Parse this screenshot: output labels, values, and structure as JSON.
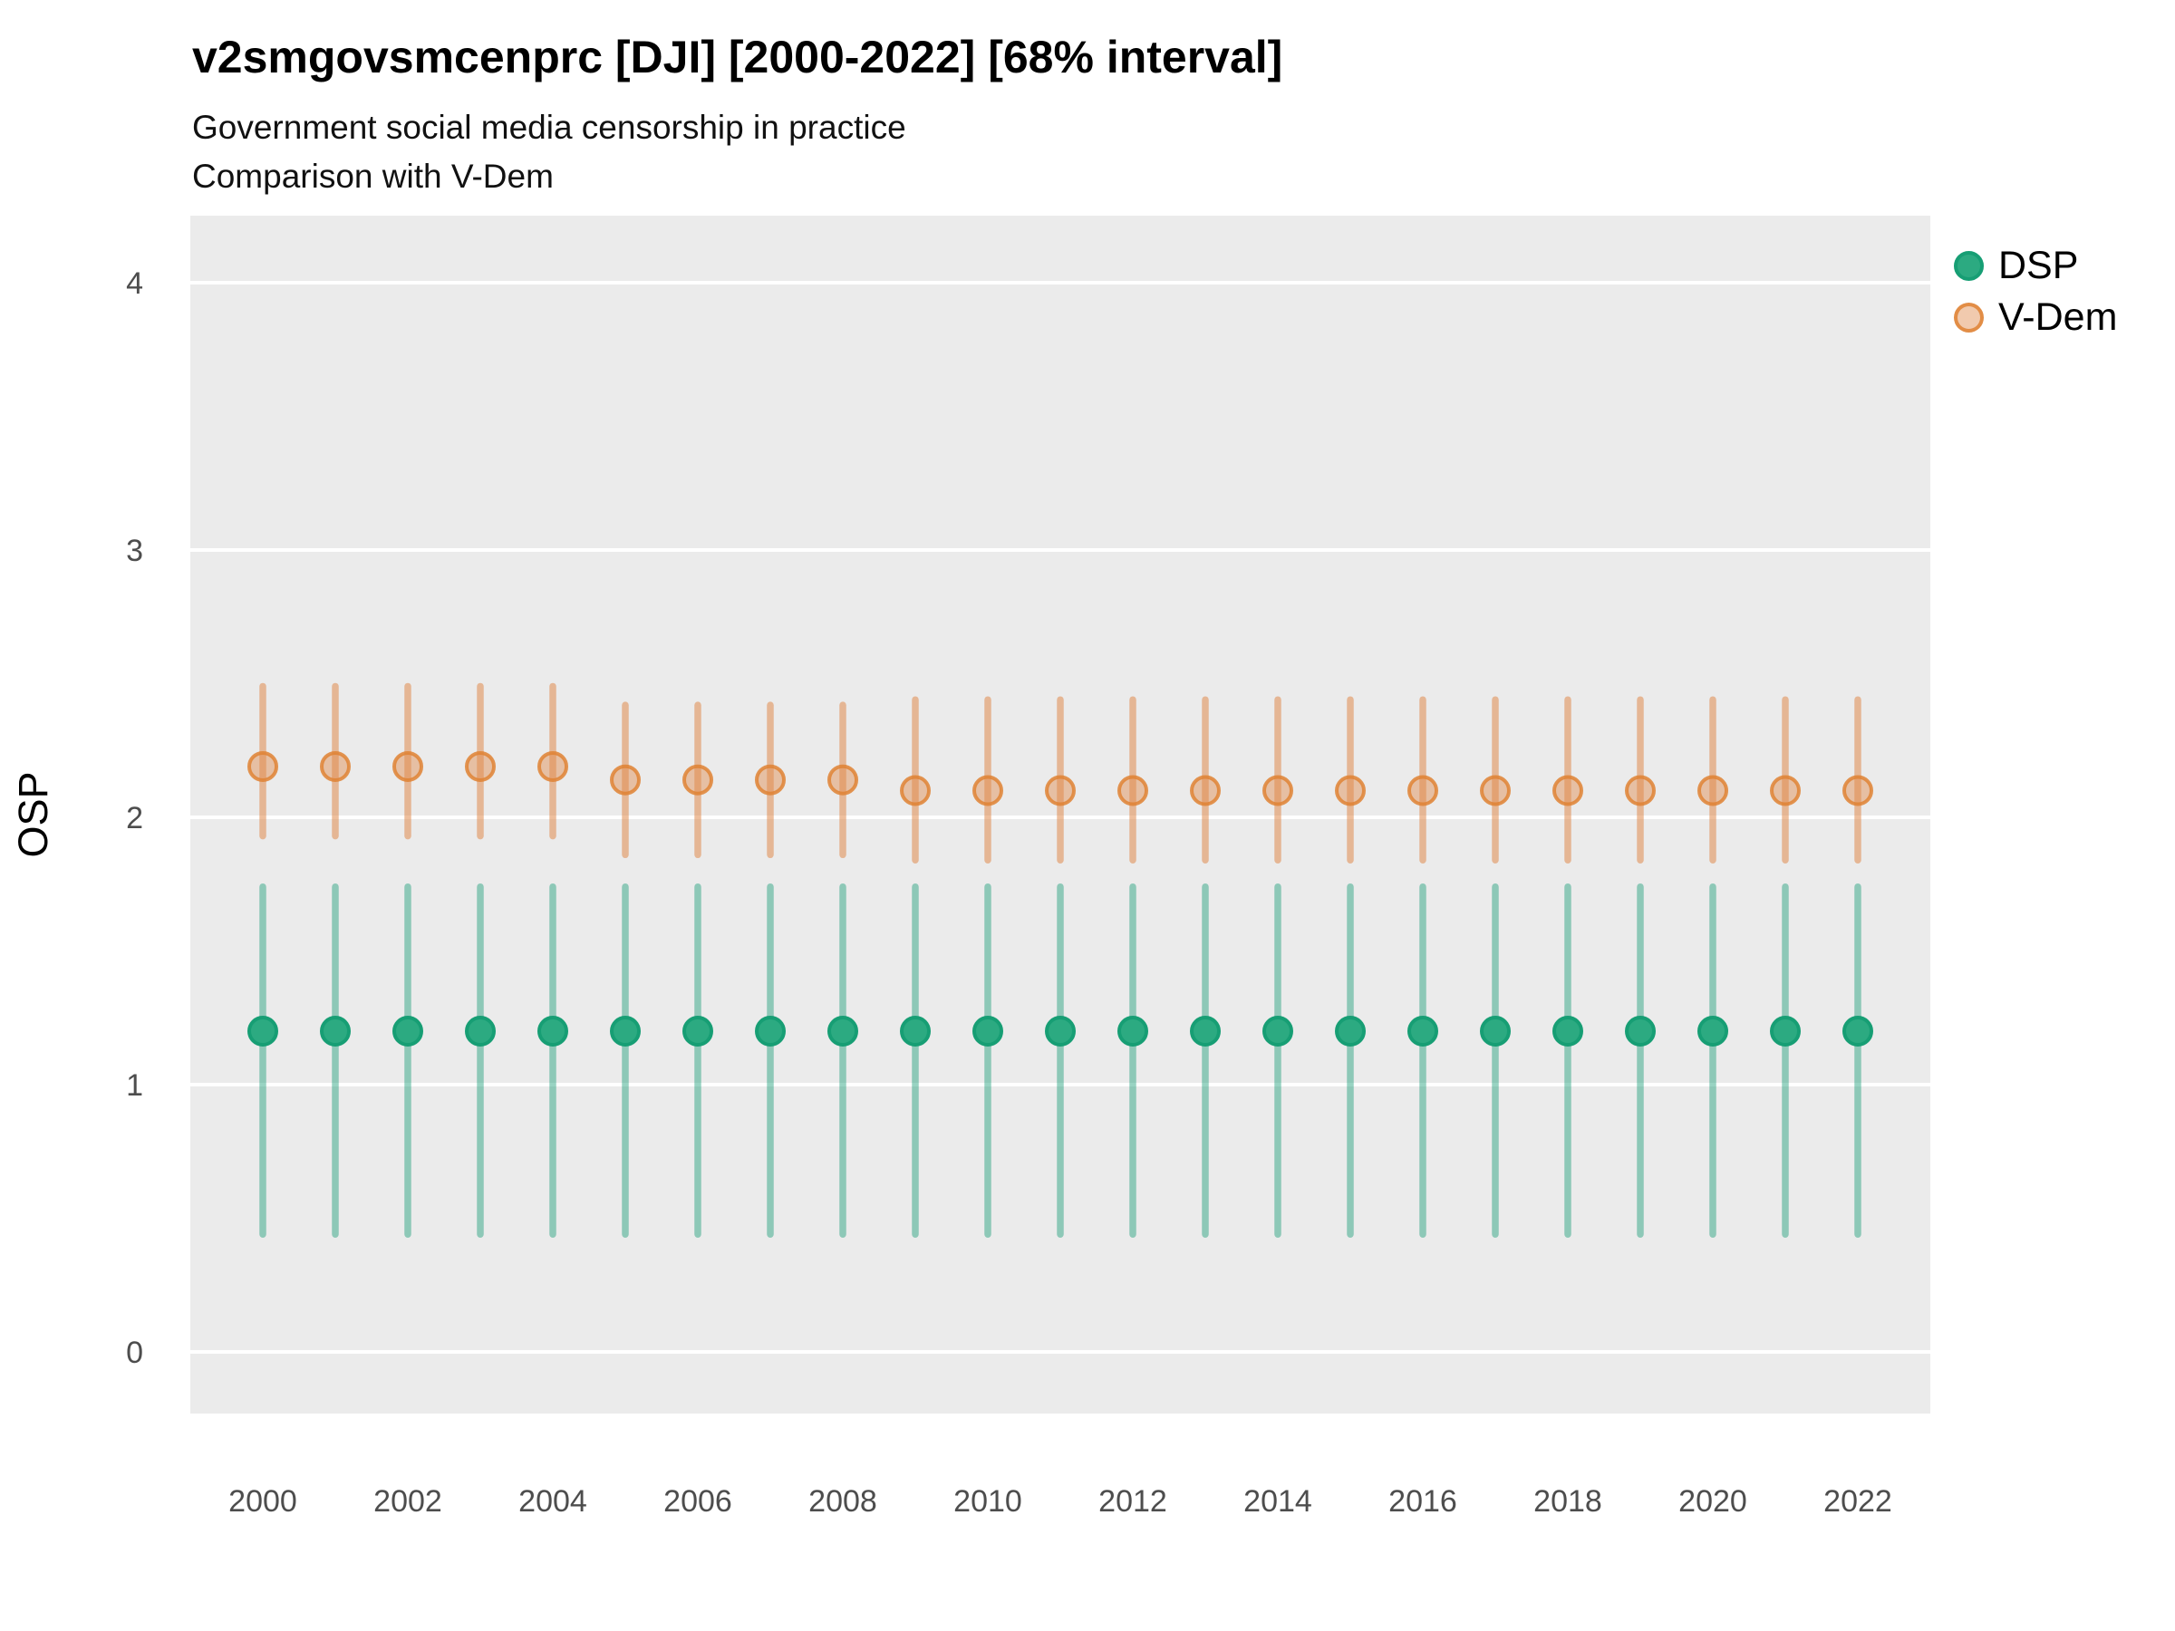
{
  "chart_data": {
    "type": "pointrange",
    "title": "v2smgovsmcenprc [DJI] [2000-2022] [68% interval]",
    "subtitle_line1": "Government social media censorship in practice",
    "subtitle_line2": "Comparison with V-Dem",
    "ylabel": "OSP",
    "xlabel": "",
    "interval": "68%",
    "ylim": [
      -0.3,
      4.25
    ],
    "grid": "major horizontal white lines on gray panel",
    "legend_position": "top-right",
    "panel_color": "#ebebeb",
    "gridline_color": "#ffffff",
    "tick_label_color": "#4d4d4d",
    "x": [
      2000,
      2001,
      2002,
      2003,
      2004,
      2005,
      2006,
      2007,
      2008,
      2009,
      2010,
      2011,
      2012,
      2013,
      2014,
      2015,
      2016,
      2017,
      2018,
      2019,
      2020,
      2021,
      2022
    ],
    "xticks": [
      2000,
      2002,
      2004,
      2006,
      2008,
      2010,
      2012,
      2014,
      2016,
      2018,
      2020,
      2022
    ],
    "yticks": [
      0,
      1,
      2,
      3,
      4
    ],
    "series": [
      {
        "name": "DSP",
        "point_fill": "#2caa81",
        "point_stroke": "#179e74",
        "bar_color": "rgba(27,158,119,0.45)",
        "est": [
          1.2,
          1.2,
          1.2,
          1.2,
          1.2,
          1.2,
          1.2,
          1.2,
          1.2,
          1.2,
          1.2,
          1.2,
          1.2,
          1.2,
          1.2,
          1.2,
          1.2,
          1.2,
          1.2,
          1.2,
          1.2,
          1.2,
          1.2
        ],
        "lo": [
          0.44,
          0.44,
          0.44,
          0.44,
          0.44,
          0.44,
          0.44,
          0.44,
          0.44,
          0.44,
          0.44,
          0.44,
          0.44,
          0.44,
          0.44,
          0.44,
          0.44,
          0.44,
          0.44,
          0.44,
          0.44,
          0.44,
          0.44
        ],
        "hi": [
          1.74,
          1.74,
          1.74,
          1.74,
          1.74,
          1.74,
          1.74,
          1.74,
          1.74,
          1.74,
          1.74,
          1.74,
          1.74,
          1.74,
          1.74,
          1.74,
          1.74,
          1.74,
          1.74,
          1.74,
          1.74,
          1.74,
          1.74
        ]
      },
      {
        "name": "V-Dem",
        "point_fill": "rgba(224,138,76,0.45)",
        "point_stroke": "rgba(223,130,52,0.85)",
        "bar_color": "rgba(224,138,76,0.55)",
        "est": [
          2.19,
          2.19,
          2.19,
          2.19,
          2.19,
          2.14,
          2.14,
          2.14,
          2.14,
          2.1,
          2.1,
          2.1,
          2.1,
          2.1,
          2.1,
          2.1,
          2.1,
          2.1,
          2.1,
          2.1,
          2.1,
          2.1,
          2.1
        ],
        "lo": [
          1.93,
          1.93,
          1.93,
          1.93,
          1.93,
          1.86,
          1.86,
          1.86,
          1.86,
          1.84,
          1.84,
          1.84,
          1.84,
          1.84,
          1.84,
          1.84,
          1.84,
          1.84,
          1.84,
          1.84,
          1.84,
          1.84,
          1.84
        ],
        "hi": [
          2.49,
          2.49,
          2.49,
          2.49,
          2.49,
          2.42,
          2.42,
          2.42,
          2.42,
          2.44,
          2.44,
          2.44,
          2.44,
          2.44,
          2.44,
          2.44,
          2.44,
          2.44,
          2.44,
          2.44,
          2.44,
          2.44,
          2.44
        ]
      }
    ]
  }
}
